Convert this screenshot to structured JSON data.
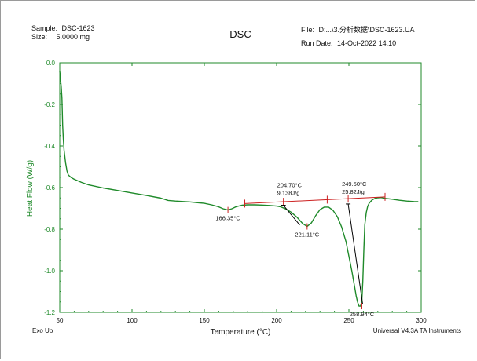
{
  "header": {
    "sample_label": "Sample:",
    "sample_value": "DSC-1623",
    "size_label": "Size:",
    "size_value": "5.0000 mg",
    "file_label": "File:",
    "file_value": "D:...\\3.分析数据\\DSC-1623.UA",
    "run_date_label": "Run Date:",
    "run_date_value": "14-Oct-2022 14:10"
  },
  "footer": {
    "exo_label": "Exo Up",
    "software_label": "Universal V4.3A TA Instruments"
  },
  "colors": {
    "curve": "#1f8a2a",
    "axis": "#1f8a2a",
    "baseline": "#cc2020",
    "annotation": "#000000"
  },
  "chart_data": {
    "type": "line",
    "title": "DSC",
    "xlabel": "Temperature (°C)",
    "ylabel": "Heat Flow (W/g)",
    "xlim": [
      50,
      300
    ],
    "ylim": [
      -1.2,
      0.0
    ],
    "x_ticks": [
      50,
      100,
      150,
      200,
      250,
      300
    ],
    "y_ticks": [
      0.0,
      -0.2,
      -0.4,
      -0.6,
      -0.8,
      -1.0,
      -1.2
    ],
    "x_tick_labels": [
      "50",
      "100",
      "150",
      "200",
      "250",
      "300"
    ],
    "y_tick_labels": [
      "0.0",
      "-0.2",
      "-0.4",
      "-0.6",
      "-0.8",
      "-1.0",
      "-1.2"
    ],
    "series": [
      {
        "x": [
          50,
          50.5,
          51,
          51.5,
          52,
          52.5,
          53,
          54,
          55,
          56,
          58,
          60,
          65,
          70,
          80,
          90,
          100,
          110,
          120,
          125,
          130,
          140,
          150,
          155,
          160,
          163,
          166.35,
          169,
          172,
          176,
          180,
          185,
          190,
          195,
          200,
          203,
          206,
          210,
          214,
          218,
          221.11,
          224,
          227,
          230,
          233,
          236,
          239,
          242,
          245,
          248,
          250,
          252,
          254,
          255,
          256,
          257,
          258,
          258.94,
          259.6,
          260.3,
          261,
          262,
          263,
          264,
          266,
          268,
          270,
          272,
          274,
          276,
          280,
          285,
          290,
          295,
          298
        ],
        "y": [
          -0.04,
          -0.08,
          -0.11,
          -0.17,
          -0.3,
          -0.37,
          -0.42,
          -0.48,
          -0.52,
          -0.54,
          -0.552,
          -0.56,
          -0.575,
          -0.587,
          -0.602,
          -0.614,
          -0.626,
          -0.638,
          -0.651,
          -0.662,
          -0.665,
          -0.669,
          -0.676,
          -0.683,
          -0.693,
          -0.702,
          -0.708,
          -0.702,
          -0.692,
          -0.685,
          -0.683,
          -0.683,
          -0.684,
          -0.686,
          -0.689,
          -0.693,
          -0.702,
          -0.718,
          -0.742,
          -0.773,
          -0.787,
          -0.77,
          -0.735,
          -0.706,
          -0.694,
          -0.694,
          -0.71,
          -0.74,
          -0.79,
          -0.86,
          -0.93,
          -1.0,
          -1.08,
          -1.12,
          -1.15,
          -1.17,
          -1.17,
          -1.15,
          -1.05,
          -0.9,
          -0.78,
          -0.72,
          -0.69,
          -0.675,
          -0.66,
          -0.652,
          -0.649,
          -0.648,
          -0.65,
          -0.653,
          -0.656,
          -0.661,
          -0.665,
          -0.667,
          -0.668
        ]
      }
    ],
    "baseline": {
      "x": [
        178,
        275
      ],
      "y": [
        -0.677,
        -0.645
      ],
      "marker_x": [
        178,
        204.7,
        235,
        249.5,
        275
      ]
    },
    "peak_integrations": [
      {
        "onset_x": 204.7,
        "onset_y": -0.685,
        "tangent_end_x": 216,
        "tangent_end_y": -0.78,
        "onset_label": "204.70°C",
        "enthalpy_label": "9.138J/g"
      },
      {
        "onset_x": 249.5,
        "onset_y": -0.679,
        "tangent_end_x": 259.5,
        "tangent_end_y": -1.16,
        "onset_label": "249.50°C",
        "enthalpy_label": "25.82J/g"
      }
    ],
    "peak_labels": [
      {
        "x": 166.35,
        "y": -0.708,
        "label": "166.35°C"
      },
      {
        "x": 221.11,
        "y": -0.787,
        "label": "221.11°C"
      },
      {
        "x": 258.94,
        "y": -1.17,
        "label": "258.94°C"
      }
    ],
    "grid": false,
    "legend": "none"
  }
}
